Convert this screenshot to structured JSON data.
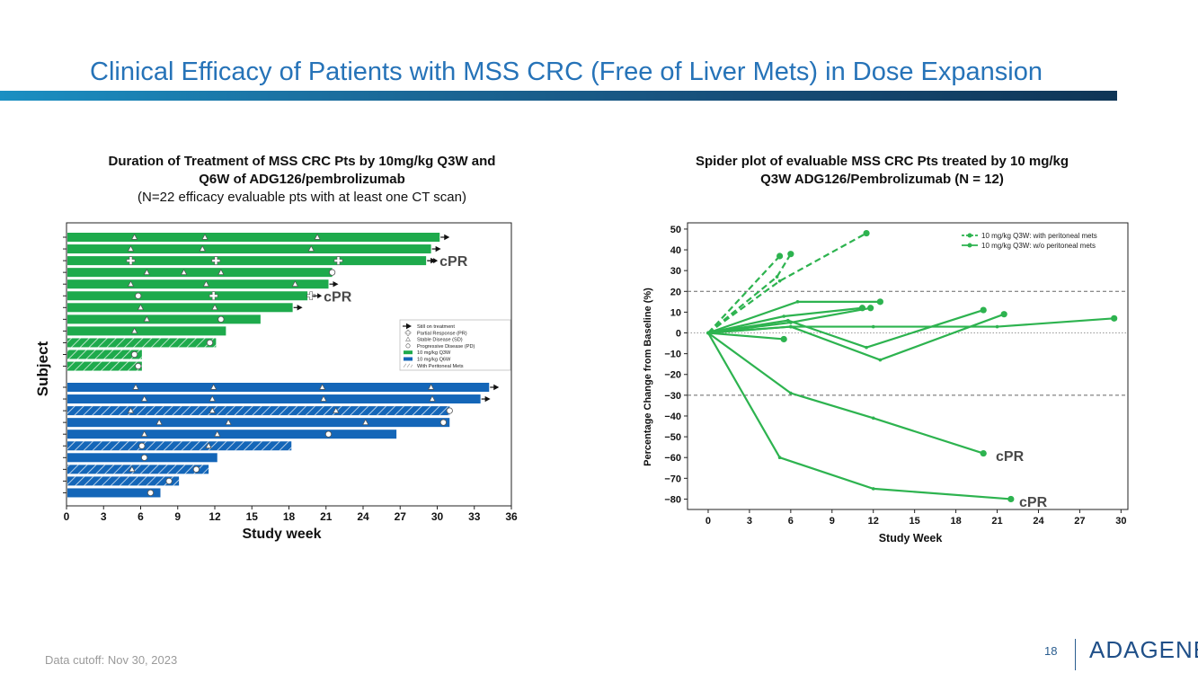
{
  "page": {
    "title": "Clinical Efficacy of Patients with MSS CRC (Free of Liver Mets) in Dose Expansion",
    "footnote": "Data cutoff: Nov 30, 2023",
    "page_number": "18",
    "logo_text": "ADAGENE",
    "left_heading_line1": "Duration of Treatment of MSS CRC Pts by 10mg/kg Q3W and",
    "left_heading_line2": "Q6W of ADG126/pembrolizumab",
    "left_heading_line3": "(N=22 efficacy evaluable pts with at least one CT scan)",
    "right_heading_line1": "Spider plot of evaluable MSS CRC Pts treated by 10 mg/kg",
    "right_heading_line2": "Q3W ADG126/Pembrolizumab (N = 12)"
  },
  "colors": {
    "green": "#1eaa4c",
    "blue": "#1466b8",
    "spider_green": "#2db34f",
    "cpr_text": "#4a4a4a"
  },
  "chart_data": [
    {
      "type": "bar",
      "orientation": "horizontal",
      "title": "Duration of Treatment of MSS CRC Pts by 10mg/kg Q3W and Q6W of ADG126/pembrolizumab",
      "xlabel": "Study week",
      "ylabel": "Subject",
      "xlim": [
        0,
        36
      ],
      "xticks": [
        0,
        3,
        6,
        9,
        12,
        15,
        18,
        21,
        24,
        27,
        30,
        33,
        36
      ],
      "legend": {
        "position": "center-right",
        "entries": [
          "Still on treatment",
          "Partial Response (PR)",
          "Stable Disease (SD)",
          "Progressive Disease (PD)",
          "10 mg/kg Q3W",
          "10 mg/kg Q6W",
          "With Peritoneal Mets"
        ]
      },
      "groups": [
        {
          "name": "10 mg/kg Q3W",
          "bars": [
            {
              "end": 30.2,
              "ongoing": true,
              "peritoneal": false,
              "sd": [
                5.5,
                11.2,
                20.3
              ],
              "pr": [],
              "pd": null,
              "cpr": false
            },
            {
              "end": 29.5,
              "ongoing": true,
              "peritoneal": false,
              "sd": [
                5.2,
                11.0,
                19.8
              ],
              "pr": [],
              "pd": null,
              "cpr": false
            },
            {
              "end": 29.1,
              "ongoing": true,
              "peritoneal": false,
              "sd": [],
              "pr": [
                5.2,
                12.1,
                22.0
              ],
              "pd": null,
              "cpr": true
            },
            {
              "end": 21.5,
              "ongoing": false,
              "peritoneal": false,
              "sd": [
                6.5,
                9.5,
                12.5
              ],
              "pr": [],
              "pd": 21.5,
              "cpr": false
            },
            {
              "end": 21.2,
              "ongoing": true,
              "peritoneal": false,
              "sd": [
                5.2,
                11.3,
                18.5
              ],
              "pr": [],
              "pd": null,
              "cpr": false
            },
            {
              "end": 19.5,
              "ongoing": false,
              "peritoneal": false,
              "sd": [],
              "pr": [
                11.9,
                19.8
              ],
              "pd": 5.8,
              "cpr": true
            },
            {
              "end": 18.3,
              "ongoing": true,
              "peritoneal": false,
              "sd": [
                6.0,
                12.0
              ],
              "pr": [],
              "pd": null,
              "cpr": false
            },
            {
              "end": 15.7,
              "ongoing": false,
              "peritoneal": false,
              "sd": [
                6.5
              ],
              "pr": [],
              "pd": 12.5,
              "cpr": false
            },
            {
              "end": 12.9,
              "ongoing": false,
              "peritoneal": false,
              "sd": [
                5.5
              ],
              "pr": [],
              "pd": null,
              "cpr": false
            },
            {
              "end": 12.1,
              "ongoing": false,
              "peritoneal": true,
              "sd": [],
              "pr": [],
              "pd": 11.6,
              "cpr": false
            },
            {
              "end": 6.1,
              "ongoing": false,
              "peritoneal": true,
              "sd": [],
              "pr": [],
              "pd": 5.5,
              "cpr": false
            },
            {
              "end": 6.1,
              "ongoing": false,
              "peritoneal": true,
              "sd": [],
              "pr": [],
              "pd": 5.8,
              "cpr": false
            }
          ]
        },
        {
          "name": "10 mg/kg Q6W",
          "bars": [
            {
              "end": 34.2,
              "ongoing": true,
              "peritoneal": false,
              "sd": [
                5.6,
                11.9,
                20.7,
                29.5
              ],
              "pr": [],
              "pd": null,
              "cpr": false
            },
            {
              "end": 33.5,
              "ongoing": true,
              "peritoneal": false,
              "sd": [
                6.3,
                11.8,
                20.8,
                29.6
              ],
              "pr": [],
              "pd": null,
              "cpr": false
            },
            {
              "end": 31.0,
              "ongoing": false,
              "peritoneal": true,
              "sd": [
                5.2,
                11.8,
                21.8
              ],
              "pr": [],
              "pd": 31.0,
              "cpr": false
            },
            {
              "end": 31.0,
              "ongoing": false,
              "peritoneal": false,
              "sd": [
                7.5,
                13.1,
                24.2
              ],
              "pr": [],
              "pd": 30.5,
              "cpr": false
            },
            {
              "end": 26.7,
              "ongoing": false,
              "peritoneal": false,
              "sd": [
                6.3,
                12.2
              ],
              "pr": [],
              "pd": 21.2,
              "cpr": false
            },
            {
              "end": 18.2,
              "ongoing": false,
              "peritoneal": true,
              "sd": [
                11.5
              ],
              "pr": [],
              "pd": 6.1,
              "cpr": false
            },
            {
              "end": 12.2,
              "ongoing": false,
              "peritoneal": false,
              "sd": [],
              "pr": [],
              "pd": 6.3,
              "cpr": false
            },
            {
              "end": 11.5,
              "ongoing": false,
              "peritoneal": true,
              "sd": [
                5.3
              ],
              "pr": [],
              "pd": 10.5,
              "cpr": false
            },
            {
              "end": 9.1,
              "ongoing": false,
              "peritoneal": true,
              "sd": [],
              "pr": [],
              "pd": 8.3,
              "cpr": false
            },
            {
              "end": 7.6,
              "ongoing": false,
              "peritoneal": false,
              "sd": [],
              "pr": [],
              "pd": 6.8,
              "cpr": false
            }
          ]
        }
      ],
      "annotations": [
        "cPR",
        "cPR"
      ]
    },
    {
      "type": "line",
      "title": "Spider plot of evaluable MSS CRC Pts treated by 10 mg/kg Q3W ADG126/Pembrolizumab (N = 12)",
      "xlabel": "Study Week",
      "ylabel": "Percentage Change from Baseline (%)",
      "xlim": [
        -1.5,
        30.5
      ],
      "ylim": [
        -85,
        53
      ],
      "xticks": [
        0,
        3,
        6,
        9,
        12,
        15,
        18,
        21,
        24,
        27,
        30
      ],
      "yticks": [
        50,
        40,
        30,
        20,
        10,
        0,
        -10,
        -20,
        -30,
        -40,
        -50,
        -60,
        -70,
        -80
      ],
      "reference_lines": [
        20,
        0,
        -30
      ],
      "legend": {
        "position": "top-right",
        "entries": [
          "10 mg/kg Q3W: with peritoneal mets",
          "10 mg/kg Q3W: w/o peritoneal mets"
        ]
      },
      "series": [
        {
          "name": "10 mg/kg Q3W: with peritoneal mets",
          "dashed": true,
          "x": [
            0,
            5.2
          ],
          "y": [
            0,
            37
          ]
        },
        {
          "name": "10 mg/kg Q3W: with peritoneal mets",
          "dashed": true,
          "x": [
            0,
            5.0,
            6.0
          ],
          "y": [
            0,
            27,
            38
          ]
        },
        {
          "name": "10 mg/kg Q3W: with peritoneal mets",
          "dashed": true,
          "x": [
            0,
            5.2,
            11.5
          ],
          "y": [
            0,
            25,
            48
          ]
        },
        {
          "name": "10 mg/kg Q3W: w/o peritoneal mets",
          "dashed": false,
          "x": [
            0,
            6.5,
            12.5
          ],
          "y": [
            0,
            15,
            15
          ]
        },
        {
          "name": "10 mg/kg Q3W: w/o peritoneal mets",
          "dashed": false,
          "x": [
            0,
            5.5,
            11.2
          ],
          "y": [
            0,
            8,
            12
          ]
        },
        {
          "name": "10 mg/kg Q3W: w/o peritoneal mets",
          "dashed": false,
          "x": [
            0,
            6.0,
            11.8
          ],
          "y": [
            0,
            5,
            12
          ]
        },
        {
          "name": "10 mg/kg Q3W: w/o peritoneal mets",
          "dashed": false,
          "x": [
            0,
            5.5
          ],
          "y": [
            0,
            -3
          ]
        },
        {
          "name": "10 mg/kg Q3W: w/o peritoneal mets",
          "dashed": false,
          "x": [
            0,
            5.8,
            11.5,
            20.0
          ],
          "y": [
            0,
            6,
            -7,
            11
          ]
        },
        {
          "name": "10 mg/kg Q3W: w/o peritoneal mets",
          "dashed": false,
          "x": [
            0,
            6.0,
            12.0,
            21.0,
            29.5
          ],
          "y": [
            0,
            3,
            3,
            3,
            7
          ]
        },
        {
          "name": "10 mg/kg Q3W: w/o peritoneal mets",
          "dashed": false,
          "x": [
            0,
            6.0,
            12.5,
            21.5
          ],
          "y": [
            0,
            3,
            -13,
            9
          ]
        },
        {
          "name": "10 mg/kg Q3W: w/o peritoneal mets",
          "dashed": false,
          "x": [
            0,
            6.0,
            12.0,
            20.0
          ],
          "y": [
            0,
            -29,
            -41,
            -58
          ]
        },
        {
          "name": "10 mg/kg Q3W: w/o peritoneal mets",
          "dashed": false,
          "x": [
            0,
            5.2,
            12.0,
            22.0
          ],
          "y": [
            0,
            -60,
            -75,
            -80
          ]
        }
      ],
      "annotations": [
        {
          "text": "cPR",
          "x": 20.9,
          "y": -59
        },
        {
          "text": "cPR",
          "x": 22.6,
          "y": -81
        }
      ]
    }
  ]
}
